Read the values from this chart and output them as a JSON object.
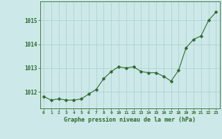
{
  "x": [
    0,
    1,
    2,
    3,
    4,
    5,
    6,
    7,
    8,
    9,
    10,
    11,
    12,
    13,
    14,
    15,
    16,
    17,
    18,
    19,
    20,
    21,
    22,
    23
  ],
  "y": [
    1011.8,
    1011.65,
    1011.7,
    1011.65,
    1011.65,
    1011.7,
    1011.9,
    1012.1,
    1012.55,
    1012.85,
    1013.05,
    1013.0,
    1013.05,
    1012.85,
    1012.8,
    1012.8,
    1012.65,
    1012.45,
    1012.9,
    1013.85,
    1014.2,
    1014.35,
    1015.0,
    1015.35
  ],
  "line_color": "#2d6a2d",
  "marker": "D",
  "marker_size": 2.5,
  "bg_color": "#cce8e8",
  "grid_color": "#aacfcf",
  "ylabel_ticks": [
    1012,
    1013,
    1014,
    1015
  ],
  "xlabel": "Graphe pression niveau de la mer (hPa)",
  "xlabel_color": "#2d6a2d",
  "axis_color": "#2d6a2d",
  "tick_color": "#2d6a2d",
  "ylim": [
    1011.3,
    1015.8
  ],
  "xlim": [
    -0.5,
    23.5
  ]
}
